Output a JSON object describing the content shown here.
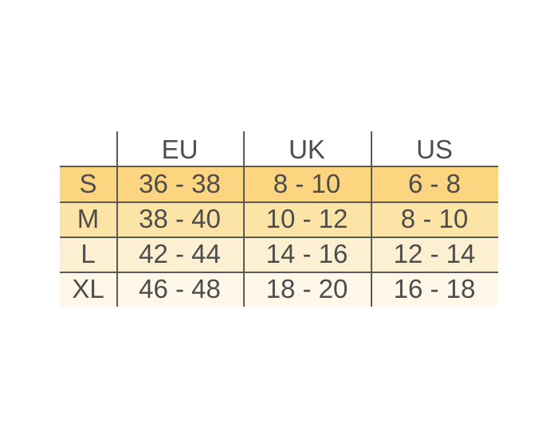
{
  "table": {
    "columns": [
      "EU",
      "UK",
      "US"
    ],
    "rows": [
      {
        "size": "S",
        "cells": [
          "36 - 38",
          "8 - 10",
          "6 - 8"
        ]
      },
      {
        "size": "M",
        "cells": [
          "38 - 40",
          "10 - 12",
          "8 - 10"
        ]
      },
      {
        "size": "L",
        "cells": [
          "42 - 44",
          "14 - 16",
          "12 - 14"
        ]
      },
      {
        "size": "XL",
        "cells": [
          "46 - 48",
          "18 - 20",
          "16 - 18"
        ]
      }
    ]
  }
}
